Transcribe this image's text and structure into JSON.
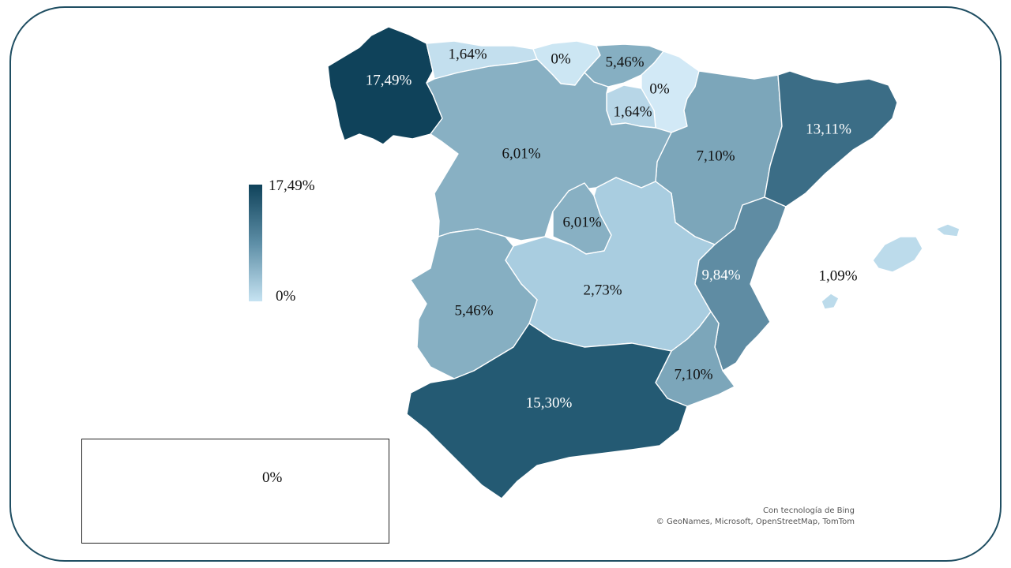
{
  "map": {
    "regions": [
      {
        "id": "galicia",
        "value": 17.49,
        "label": "17,49%",
        "color": "#0f425a"
      },
      {
        "id": "asturias",
        "value": 1.64,
        "label": "1,64%",
        "color": "#c3dfee"
      },
      {
        "id": "cantabria",
        "value": 0,
        "label": "0%",
        "color": "#cce6f3"
      },
      {
        "id": "pais-vasco",
        "value": 5.46,
        "label": "5,46%",
        "color": "#86afc2"
      },
      {
        "id": "navarra",
        "value": 0,
        "label": "0%",
        "color": "#d2e9f6"
      },
      {
        "id": "la-rioja",
        "value": 1.64,
        "label": "1,64%",
        "color": "#b7d6e7"
      },
      {
        "id": "aragon",
        "value": 7.1,
        "label": "7,10%",
        "color": "#7ca6ba"
      },
      {
        "id": "cataluna",
        "value": 13.11,
        "label": "13,11%",
        "color": "#3b6d86"
      },
      {
        "id": "castilla-y-leon",
        "value": 6.01,
        "label": "6,01%",
        "color": "#88b0c3"
      },
      {
        "id": "madrid",
        "value": 6.01,
        "label": "6,01%",
        "color": "#88b0c3"
      },
      {
        "id": "castilla-la-mancha",
        "value": 2.73,
        "label": "2,73%",
        "color": "#a9cde0"
      },
      {
        "id": "extremadura",
        "value": 5.46,
        "label": "5,46%",
        "color": "#86afc2"
      },
      {
        "id": "comunidad-valenciana",
        "value": 9.84,
        "label": "9,84%",
        "color": "#5f8ca3"
      },
      {
        "id": "murcia",
        "value": 7.1,
        "label": "7,10%",
        "color": "#7ca6ba"
      },
      {
        "id": "andalucia",
        "value": 15.3,
        "label": "15,30%",
        "color": "#245a73"
      },
      {
        "id": "baleares",
        "value": 1.09,
        "label": "1,09%",
        "color": "#bcdbeb"
      },
      {
        "id": "canarias",
        "value": 0,
        "label": "0%",
        "color": "#d5e1f2"
      }
    ]
  },
  "legend": {
    "max_label": "17,49%",
    "min_label": "0%",
    "color_high": "#0f425a",
    "color_low": "#c6e3f2"
  },
  "credits": {
    "line1": "Con tecnología de Bing",
    "line2": "© GeoNames, Microsoft, OpenStreetMap, TomTom"
  }
}
